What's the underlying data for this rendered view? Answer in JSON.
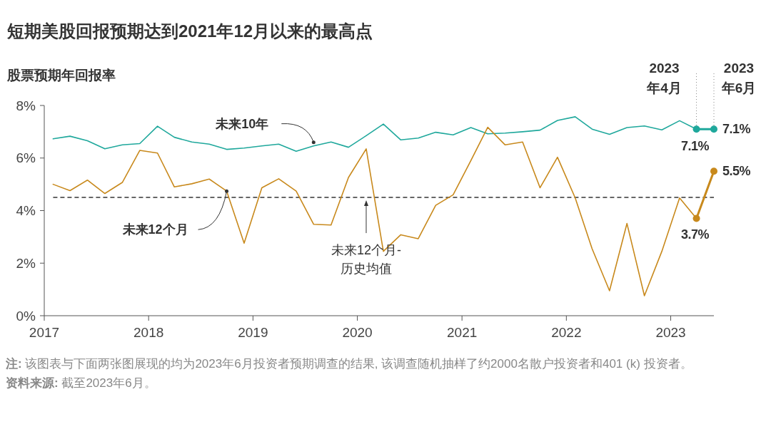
{
  "chart_data": {
    "type": "line",
    "title": "短期美股回报预期达到2021年12月以来的最高点",
    "ylabel": "股票预期年回报率",
    "x": [
      "2017-02",
      "2017-04",
      "2017-06",
      "2017-08",
      "2017-10",
      "2017-12",
      "2018-02",
      "2018-04",
      "2018-06",
      "2018-08",
      "2018-10",
      "2018-12",
      "2019-02",
      "2019-04",
      "2019-06",
      "2019-08",
      "2019-10",
      "2019-12",
      "2020-02",
      "2020-04",
      "2020-06",
      "2020-08",
      "2020-10",
      "2020-12",
      "2021-02",
      "2021-04",
      "2021-06",
      "2021-08",
      "2021-10",
      "2021-12",
      "2022-02",
      "2022-04",
      "2022-06",
      "2022-08",
      "2022-10",
      "2022-12",
      "2023-02",
      "2023-04"
    ],
    "series": [
      {
        "color": "#1fa89c",
        "values": [
          6.73,
          6.83,
          6.66,
          6.35,
          6.5,
          6.55,
          7.21,
          6.79,
          6.61,
          6.53,
          6.33,
          6.38,
          6.46,
          6.53,
          6.26,
          6.46,
          6.61,
          6.41,
          6.85,
          7.29,
          6.69,
          6.76,
          6.98,
          6.88,
          7.16,
          6.92,
          6.95,
          7.0,
          7.06,
          7.43,
          7.57,
          7.1,
          6.9,
          7.16,
          7.22,
          7.07,
          7.42,
          7.1
        ]
      },
      {
        "color": "#c8891c",
        "values": [
          5.0,
          4.76,
          5.16,
          4.65,
          5.07,
          6.29,
          6.19,
          4.9,
          5.02,
          5.2,
          4.74,
          2.76,
          4.87,
          5.21,
          4.74,
          3.48,
          3.45,
          5.26,
          6.35,
          2.45,
          3.08,
          2.93,
          4.2,
          4.6,
          5.9,
          7.17,
          6.5,
          6.61,
          4.87,
          6.03,
          4.48,
          2.55,
          0.95,
          3.51,
          0.76,
          2.45,
          4.48,
          3.7
        ]
      },
      {
        "color": "#1fa89c",
        "x": [
          "2023-04",
          "2023-06"
        ],
        "values": [
          7.1,
          7.1
        ],
        "marker": "circle",
        "value_labels": [
          "7.1%",
          "7.1%"
        ]
      },
      {
        "color": "#c8891c",
        "x": [
          "2023-04",
          "2023-06"
        ],
        "values": [
          3.7,
          5.5
        ],
        "marker": "circle",
        "value_labels": [
          "3.7%",
          "5.5%"
        ]
      }
    ],
    "xlim": [
      "2017-01",
      "2023-06"
    ],
    "xticks": [
      "2017",
      "2018",
      "2019",
      "2020",
      "2021",
      "2022",
      "2023"
    ],
    "ylim": [
      0,
      8
    ],
    "yticks": [
      {
        "value": 0,
        "label": "0%"
      },
      {
        "value": 2,
        "label": "2%"
      },
      {
        "value": 4,
        "label": "4%"
      },
      {
        "value": 6,
        "label": "6%"
      },
      {
        "value": 8,
        "label": "8%"
      }
    ],
    "grid": false,
    "ref_lines": [
      {
        "axis": "y",
        "value": 4.5,
        "color": "#666666",
        "line_style": "dashed"
      },
      {
        "axis": "x",
        "value": "2023-04",
        "label": "2023\n年4月",
        "color": "#888888",
        "line_style": "dotted"
      },
      {
        "axis": "x",
        "value": "2023-06",
        "label": "2023\n年6月",
        "color": "#888888",
        "line_style": "dotted"
      }
    ],
    "annotations": [
      {
        "text": "未来10年",
        "x": "2019-08",
        "y": 6.6
      },
      {
        "text": "未来12个月",
        "x": "2018-10",
        "y": 4.74
      },
      "未来12个月-\n历史均值",
      "注: 该图表与下面两张图展现的均为2023年6月投资者预期调查的结果, 该调查随机抽样了约2000名散户投资者和401 (k) 投资者。",
      "资料来源: 截至2023年6月。"
    ]
  }
}
